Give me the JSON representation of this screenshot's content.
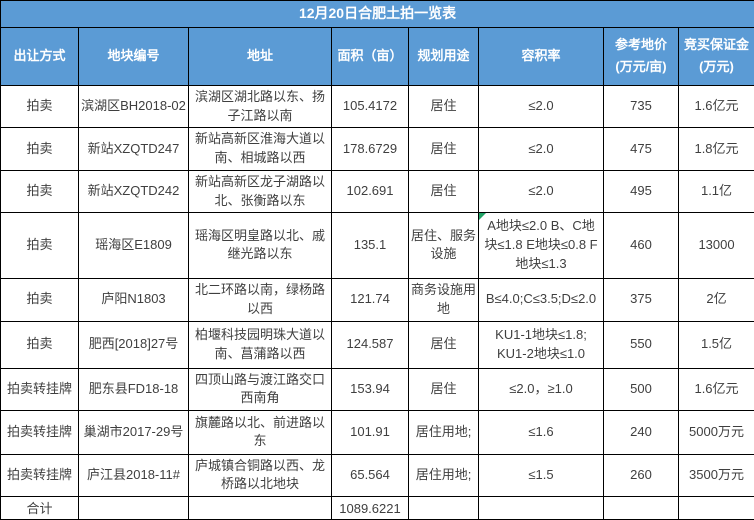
{
  "title": "12月20日合肥土拍一览表",
  "colors": {
    "header_bg": "#5B9BD5",
    "header_text": "#ffffff",
    "body_text": "#3f3f3f",
    "border": "#000000",
    "comment_indicator_green": "#21a366"
  },
  "table": {
    "columns": [
      "出让方式",
      "地块编号",
      "地址",
      "面积（亩）",
      "规划用途",
      "容积率",
      "参考地价\n(万元/亩)",
      "竞买保证金\n(万元)"
    ],
    "rows": [
      {
        "cells": [
          "拍卖",
          "滨湖区BH2018-02",
          "滨湖区湖北路以东、扬子江路以南",
          "105.4172",
          "居住",
          "≤2.0",
          "735",
          "1.6亿元"
        ]
      },
      {
        "cells": [
          "拍卖",
          "新站XZQTD247",
          "新站高新区淮海大道以南、相城路以西",
          "178.6729",
          "居住",
          "≤2.0",
          "475",
          "1.8亿元"
        ]
      },
      {
        "cells": [
          "拍卖",
          "新站XZQTD242",
          "新站高新区龙子湖路以北、张衡路以东",
          "102.691",
          "居住",
          "≤2.0",
          "495",
          "1.1亿"
        ]
      },
      {
        "cells": [
          "拍卖",
          "瑶海区E1809",
          "瑶海区明皇路以北、戚继光路以东",
          "135.1",
          "居住、服务设施",
          "A地块≤2.0 B、C地块≤1.8 E地块≤0.8 F地块≤1.3",
          "460",
          "13000"
        ],
        "comment_indicator": true
      },
      {
        "cells": [
          "拍卖",
          "庐阳N1803",
          "北二环路以南，绿杨路以西",
          "121.74",
          "商务设施用地",
          "B≤4.0;C≤3.5;D≤2.0",
          "375",
          "2亿"
        ]
      },
      {
        "cells": [
          "拍卖",
          "肥西[2018]27号",
          "柏堰科技园明珠大道以南、菖蒲路以西",
          "124.587",
          "居住",
          "KU1-1地块≤1.8; KU1-2地块≤1.0",
          "550",
          "1.5亿"
        ]
      },
      {
        "cells": [
          "拍卖转挂牌",
          "肥东县FD18-18",
          "四顶山路与渡江路交口西南角",
          "153.94",
          "居住",
          "≤2.0，≥1.0",
          "500",
          "1.6亿元"
        ]
      },
      {
        "cells": [
          "拍卖转挂牌",
          "巢湖市2017-29号",
          "旗麓路以北、前进路以东",
          "101.91",
          "居住用地;",
          "≤1.6",
          "240",
          "5000万元"
        ]
      },
      {
        "cells": [
          "拍卖转挂牌",
          "庐江县2018-11#",
          "庐城镇合铜路以西、龙桥路以北地块",
          "65.564",
          "居住用地;",
          "≤1.5",
          "260",
          "3500万元"
        ]
      }
    ],
    "total_row": {
      "cells": [
        "合计",
        "",
        "",
        "1089.6221",
        "",
        "",
        "",
        ""
      ]
    }
  }
}
